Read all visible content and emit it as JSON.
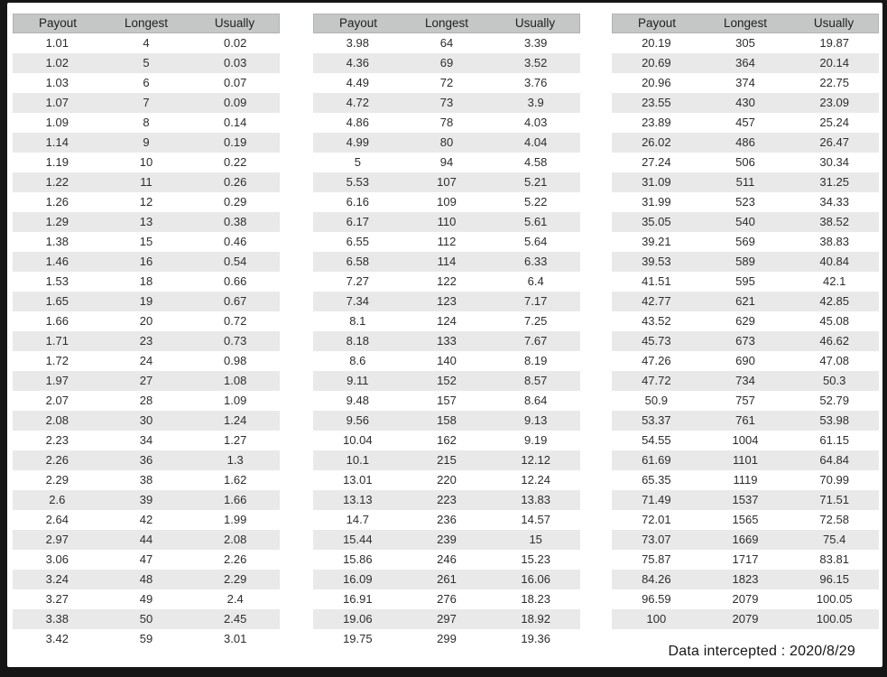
{
  "columns": [
    "Payout",
    "Longest",
    "Usually"
  ],
  "colors": {
    "frame": "#161616",
    "page_background": "#ffffff",
    "header_background": "#c5c6c6",
    "stripe_background": "#e9e9e9",
    "text": "#2d2d2d"
  },
  "footer": {
    "label": "Data intercepted : 2020/8/29"
  },
  "tables": [
    {
      "rows": [
        [
          "1.01",
          "4",
          "0.02"
        ],
        [
          "1.02",
          "5",
          "0.03"
        ],
        [
          "1.03",
          "6",
          "0.07"
        ],
        [
          "1.07",
          "7",
          "0.09"
        ],
        [
          "1.09",
          "8",
          "0.14"
        ],
        [
          "1.14",
          "9",
          "0.19"
        ],
        [
          "1.19",
          "10",
          "0.22"
        ],
        [
          "1.22",
          "11",
          "0.26"
        ],
        [
          "1.26",
          "12",
          "0.29"
        ],
        [
          "1.29",
          "13",
          "0.38"
        ],
        [
          "1.38",
          "15",
          "0.46"
        ],
        [
          "1.46",
          "16",
          "0.54"
        ],
        [
          "1.53",
          "18",
          "0.66"
        ],
        [
          "1.65",
          "19",
          "0.67"
        ],
        [
          "1.66",
          "20",
          "0.72"
        ],
        [
          "1.71",
          "23",
          "0.73"
        ],
        [
          "1.72",
          "24",
          "0.98"
        ],
        [
          "1.97",
          "27",
          "1.08"
        ],
        [
          "2.07",
          "28",
          "1.09"
        ],
        [
          "2.08",
          "30",
          "1.24"
        ],
        [
          "2.23",
          "34",
          "1.27"
        ],
        [
          "2.26",
          "36",
          "1.3"
        ],
        [
          "2.29",
          "38",
          "1.62"
        ],
        [
          "2.6",
          "39",
          "1.66"
        ],
        [
          "2.64",
          "42",
          "1.99"
        ],
        [
          "2.97",
          "44",
          "2.08"
        ],
        [
          "3.06",
          "47",
          "2.26"
        ],
        [
          "3.24",
          "48",
          "2.29"
        ],
        [
          "3.27",
          "49",
          "2.4"
        ],
        [
          "3.38",
          "50",
          "2.45"
        ],
        [
          "3.42",
          "59",
          "3.01"
        ]
      ]
    },
    {
      "rows": [
        [
          "3.98",
          "64",
          "3.39"
        ],
        [
          "4.36",
          "69",
          "3.52"
        ],
        [
          "4.49",
          "72",
          "3.76"
        ],
        [
          "4.72",
          "73",
          "3.9"
        ],
        [
          "4.86",
          "78",
          "4.03"
        ],
        [
          "4.99",
          "80",
          "4.04"
        ],
        [
          "5",
          "94",
          "4.58"
        ],
        [
          "5.53",
          "107",
          "5.21"
        ],
        [
          "6.16",
          "109",
          "5.22"
        ],
        [
          "6.17",
          "110",
          "5.61"
        ],
        [
          "6.55",
          "112",
          "5.64"
        ],
        [
          "6.58",
          "114",
          "6.33"
        ],
        [
          "7.27",
          "122",
          "6.4"
        ],
        [
          "7.34",
          "123",
          "7.17"
        ],
        [
          "8.1",
          "124",
          "7.25"
        ],
        [
          "8.18",
          "133",
          "7.67"
        ],
        [
          "8.6",
          "140",
          "8.19"
        ],
        [
          "9.11",
          "152",
          "8.57"
        ],
        [
          "9.48",
          "157",
          "8.64"
        ],
        [
          "9.56",
          "158",
          "9.13"
        ],
        [
          "10.04",
          "162",
          "9.19"
        ],
        [
          "10.1",
          "215",
          "12.12"
        ],
        [
          "13.01",
          "220",
          "12.24"
        ],
        [
          "13.13",
          "223",
          "13.83"
        ],
        [
          "14.7",
          "236",
          "14.57"
        ],
        [
          "15.44",
          "239",
          "15"
        ],
        [
          "15.86",
          "246",
          "15.23"
        ],
        [
          "16.09",
          "261",
          "16.06"
        ],
        [
          "16.91",
          "276",
          "18.23"
        ],
        [
          "19.06",
          "297",
          "18.92"
        ],
        [
          "19.75",
          "299",
          "19.36"
        ]
      ]
    },
    {
      "rows": [
        [
          "20.19",
          "305",
          "19.87"
        ],
        [
          "20.69",
          "364",
          "20.14"
        ],
        [
          "20.96",
          "374",
          "22.75"
        ],
        [
          "23.55",
          "430",
          "23.09"
        ],
        [
          "23.89",
          "457",
          "25.24"
        ],
        [
          "26.02",
          "486",
          "26.47"
        ],
        [
          "27.24",
          "506",
          "30.34"
        ],
        [
          "31.09",
          "511",
          "31.25"
        ],
        [
          "31.99",
          "523",
          "34.33"
        ],
        [
          "35.05",
          "540",
          "38.52"
        ],
        [
          "39.21",
          "569",
          "38.83"
        ],
        [
          "39.53",
          "589",
          "40.84"
        ],
        [
          "41.51",
          "595",
          "42.1"
        ],
        [
          "42.77",
          "621",
          "42.85"
        ],
        [
          "43.52",
          "629",
          "45.08"
        ],
        [
          "45.73",
          "673",
          "46.62"
        ],
        [
          "47.26",
          "690",
          "47.08"
        ],
        [
          "47.72",
          "734",
          "50.3"
        ],
        [
          "50.9",
          "757",
          "52.79"
        ],
        [
          "53.37",
          "761",
          "53.98"
        ],
        [
          "54.55",
          "1004",
          "61.15"
        ],
        [
          "61.69",
          "1101",
          "64.84"
        ],
        [
          "65.35",
          "1119",
          "70.99"
        ],
        [
          "71.49",
          "1537",
          "71.51"
        ],
        [
          "72.01",
          "1565",
          "72.58"
        ],
        [
          "73.07",
          "1669",
          "75.4"
        ],
        [
          "75.87",
          "1717",
          "83.81"
        ],
        [
          "84.26",
          "1823",
          "96.15"
        ],
        [
          "96.59",
          "2079",
          "100.05"
        ],
        [
          "100",
          "2079",
          "100.05"
        ]
      ]
    }
  ]
}
